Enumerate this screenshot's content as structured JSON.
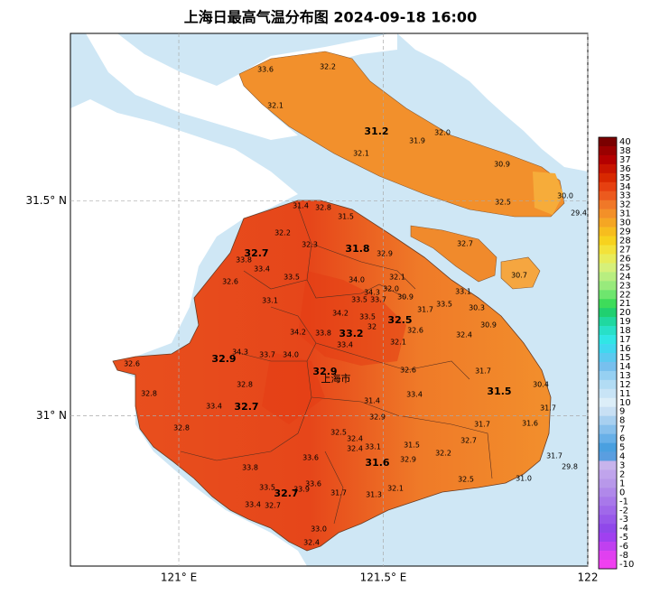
{
  "title": "上海日最高气温分布图 2024-09-18 16:00",
  "map": {
    "type": "map",
    "xlim": [
      120.735,
      122
    ],
    "ylim": [
      30.65,
      31.89
    ],
    "xticks": [
      {
        "value": 121,
        "label": "121° E"
      },
      {
        "value": 121.5,
        "label": "121.5° E"
      },
      122
    ],
    "yticks": [
      {
        "value": 31.5,
        "label": "31.5° N"
      },
      {
        "value": 31,
        "label": "31° N"
      }
    ],
    "grid": true
  },
  "city_label": "上海市",
  "stations": {
    "values": [
      33.6,
      32.2,
      32.1,
      31.2,
      32.0,
      31.9,
      32.1,
      30.9,
      30.0,
      32.5,
      29.4,
      31.4,
      32.8,
      31.5,
      32.2,
      32.3,
      31.8,
      32.9,
      32.7,
      32.7,
      33.8,
      33.4,
      33.5,
      34.0,
      32.1,
      30.7,
      32.6,
      33.1,
      32.0,
      34.3,
      33.7,
      33.5,
      30.9,
      33.1,
      30.3,
      31.7,
      33.5,
      34.2,
      33.5,
      32.5,
      30.9,
      32,
      32.6,
      34.2,
      33.8,
      33.2,
      32.4,
      33.4,
      32.1,
      34.3,
      33.7,
      34.0,
      32.9,
      32.6,
      32.9,
      32.6,
      31.7,
      32.8,
      30.4,
      33.4,
      31.5,
      32.8,
      31.4,
      31.7,
      33.4,
      32.7,
      32.9,
      31.7,
      31.6,
      32.8,
      32.5,
      32.4,
      32.7,
      33.1,
      32.4,
      31.5,
      32.2,
      33.6,
      31.6,
      32.9,
      31.7,
      29.8,
      33.8,
      32.5,
      31.0,
      33.6,
      33.5,
      33.9,
      32.1,
      31.7,
      32.7,
      31.3,
      33.4,
      32.7,
      33.0,
      32.4
    ],
    "value_labels": [
      "33.6",
      "32.2",
      "32.1",
      "31.2",
      "32.0",
      "31.9",
      "32.1",
      "30.9",
      "30.0",
      "32.5",
      "29.4",
      "31.4",
      "32.8",
      "31.5",
      "32.2",
      "32.3",
      "31.8",
      "32.9",
      "32.7",
      "32.7",
      "33.8",
      "33.4",
      "33.5",
      "34.0",
      "32.1",
      "30.7",
      "32.6",
      "33.1",
      "32.0",
      "34.3",
      "33.7",
      "33.5",
      "30.9",
      "33.1",
      "30.3",
      "31.7",
      "33.5",
      "34.2",
      "33.5",
      "32.5",
      "30.9",
      "32",
      "32.6",
      "34.2",
      "33.8",
      "33.2",
      "32.4",
      "33.4",
      "32.1",
      "34.3",
      "33.7",
      "34.0",
      "32.9",
      "32.6",
      "32.9",
      "32.6",
      "31.7",
      "32.8",
      "30.4",
      "33.4",
      "31.5",
      "32.8",
      "31.4",
      "31.7",
      "33.4",
      "32.7",
      "32.9",
      "31.7",
      "31.6",
      "32.8",
      "32.5",
      "32.4",
      "32.7",
      "33.1",
      "32.4",
      "31.5",
      "32.2",
      "33.6",
      "31.6",
      "32.9",
      "31.7",
      "29.8",
      "33.8",
      "32.5",
      "31.0",
      "33.6",
      "33.5",
      "33.9",
      "32.1",
      "31.7",
      "32.7",
      "31.3",
      "33.4",
      "32.7",
      "33.0",
      "32.4"
    ]
  },
  "colorbar": {
    "levels": [
      40,
      38,
      37,
      36,
      35,
      34,
      33,
      32,
      31,
      30,
      29,
      28,
      27,
      26,
      25,
      24,
      23,
      22,
      21,
      20,
      19,
      18,
      17,
      16,
      15,
      14,
      13,
      12,
      11,
      10,
      9,
      8,
      7,
      6,
      5,
      4,
      3,
      2,
      1,
      0,
      -1,
      -2,
      -3,
      -4,
      -5,
      -6,
      -8,
      -10
    ],
    "colors": [
      "#7a0000",
      "#9a0000",
      "#b40000",
      "#c81400",
      "#d82800",
      "#e64010",
      "#ec5a1e",
      "#f07828",
      "#f39028",
      "#f5a623",
      "#f7bd1e",
      "#f7d21e",
      "#f3e23a",
      "#e8ec5a",
      "#d6f07a",
      "#b8ee80",
      "#98ea7c",
      "#6ee66e",
      "#3edc5a",
      "#20d070",
      "#20d8a0",
      "#28e0c8",
      "#30e6e6",
      "#40d8f0",
      "#5ccaf0",
      "#78c0ee",
      "#96d0f2",
      "#b2dcf4",
      "#c8e4f6",
      "#dceef8",
      "#c8e0f4",
      "#a8d0f0",
      "#88c0ec",
      "#68b0e8",
      "#4aa0e0",
      "#5a9ee0",
      "#c8b4ec",
      "#c0a4ec",
      "#b898ea",
      "#b088ea",
      "#a878ea",
      "#a068ea",
      "#9858ea",
      "#9048ea",
      "#a040f0",
      "#c040f0",
      "#e040f0",
      "#f040f0"
    ]
  }
}
